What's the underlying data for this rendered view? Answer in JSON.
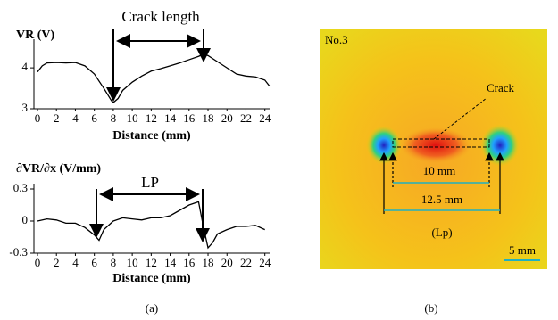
{
  "chart_data": [
    {
      "type": "line",
      "ylabel": "VR (V)",
      "xlabel": "Distance (mm)",
      "annotation": "Crack length",
      "x": [
        0,
        0.5,
        1,
        2,
        3,
        4,
        5,
        6,
        7,
        7.8,
        8,
        8.5,
        9,
        10,
        11,
        12,
        13,
        14,
        15,
        16,
        17,
        17.5,
        18,
        19,
        20,
        21,
        22,
        23,
        24,
        24.5
      ],
      "series": [
        {
          "color": "#000000",
          "values": [
            3.9,
            4.05,
            4.12,
            4.13,
            4.12,
            4.13,
            4.05,
            3.85,
            3.5,
            3.2,
            3.15,
            3.25,
            3.45,
            3.65,
            3.8,
            3.92,
            3.98,
            4.05,
            4.12,
            4.2,
            4.28,
            4.33,
            4.3,
            4.15,
            4.0,
            3.85,
            3.8,
            3.78,
            3.7,
            3.55
          ]
        }
      ],
      "xlim": [
        0,
        24.5
      ],
      "xticks": [
        0,
        2,
        4,
        6,
        8,
        10,
        12,
        14,
        16,
        18,
        20,
        22,
        24
      ],
      "ylim": [
        3,
        4.7
      ],
      "yticks": [
        3,
        4
      ]
    },
    {
      "type": "line",
      "ylabel": "∂VR/∂x (V/mm)",
      "xlabel": "Distance (mm)",
      "annotation": "LP",
      "x": [
        0,
        1,
        2,
        3,
        4,
        5,
        6,
        6.5,
        7,
        8,
        9,
        10,
        11,
        12,
        13,
        14,
        15,
        16,
        17,
        17.5,
        18,
        18.5,
        19,
        20,
        21,
        22,
        23,
        24
      ],
      "series": [
        {
          "color": "#000000",
          "values": [
            0.0,
            0.02,
            0.01,
            -0.02,
            -0.02,
            -0.06,
            -0.13,
            -0.18,
            -0.08,
            0.0,
            0.03,
            0.02,
            0.01,
            0.03,
            0.03,
            0.05,
            0.1,
            0.15,
            0.18,
            -0.05,
            -0.25,
            -0.2,
            -0.12,
            -0.08,
            -0.05,
            -0.05,
            -0.04,
            -0.08
          ]
        }
      ],
      "xlim": [
        0,
        24.5
      ],
      "xticks": [
        0,
        2,
        4,
        6,
        8,
        10,
        12,
        14,
        16,
        18,
        20,
        22,
        24
      ],
      "ylim": [
        -0.3,
        0.35
      ],
      "yticks": [
        -0.3,
        0,
        0.3
      ]
    }
  ],
  "image_panel": {
    "specimen": "No.3",
    "crack": "Crack",
    "inner_length": "10 mm",
    "outer_length": "12.5 mm",
    "lp": "(Lp)",
    "scale_bar": "5 mm"
  },
  "captions": [
    "(a)",
    "(b)"
  ]
}
